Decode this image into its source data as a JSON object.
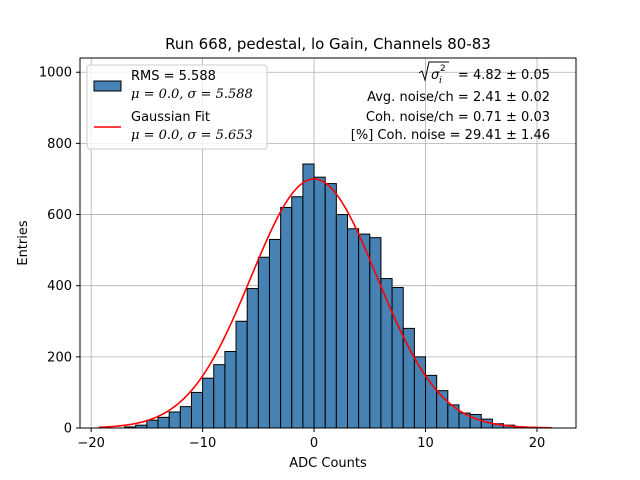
{
  "chart_data": {
    "type": "bar",
    "title": "Run 668, pedestal, lo Gain, Channels 80-83",
    "xlabel": "ADC Counts",
    "ylabel": "Entries",
    "xlim": [
      -21,
      23.5
    ],
    "ylim": [
      0,
      1040
    ],
    "grid": true,
    "x_ticks": [
      -20,
      -10,
      0,
      10,
      20
    ],
    "y_ticks": [
      0,
      200,
      400,
      600,
      800,
      1000
    ],
    "bin_width": 1,
    "bar_color": "#4682b4",
    "fit_color": "#ff0000",
    "histogram": {
      "bin_left_edges": [
        -17,
        -16,
        -15,
        -14,
        -13,
        -12,
        -11,
        -10,
        -9,
        -8,
        -7,
        -6,
        -5,
        -4,
        -3,
        -2,
        -1,
        0,
        1,
        2,
        3,
        4,
        5,
        6,
        7,
        8,
        9,
        10,
        11,
        12,
        13,
        14,
        15,
        16,
        17,
        18,
        19,
        20
      ],
      "values": [
        3,
        8,
        22,
        30,
        45,
        60,
        100,
        140,
        178,
        215,
        300,
        392,
        480,
        530,
        620,
        650,
        742,
        705,
        687,
        600,
        560,
        545,
        535,
        420,
        395,
        280,
        200,
        148,
        105,
        65,
        42,
        38,
        25,
        12,
        8,
        3,
        2,
        1
      ]
    },
    "gaussian_fit": {
      "mu": 0.0,
      "sigma": 5.653,
      "amplitude": 700,
      "x_range": [
        -19.3,
        21.3
      ]
    },
    "legend": {
      "placement": "top-left",
      "entries": [
        {
          "kind": "patch",
          "line1": "RMS = 5.588",
          "line2_mu": "μ = 0.0, ",
          "line2_sigma": "σ = 5.588"
        },
        {
          "kind": "line",
          "line1": "Gaussian Fit",
          "line2_mu": "μ = 0.0, ",
          "line2_sigma": "σ = 5.653"
        }
      ]
    },
    "annotations": {
      "line1_value": " = 4.82 ± 0.05",
      "line2": "Avg. noise/ch = 2.41 ± 0.02",
      "line3": "Coh. noise/ch = 0.71 ± 0.03",
      "line4": "[%] Coh. noise = 29.41 ± 1.46"
    }
  }
}
